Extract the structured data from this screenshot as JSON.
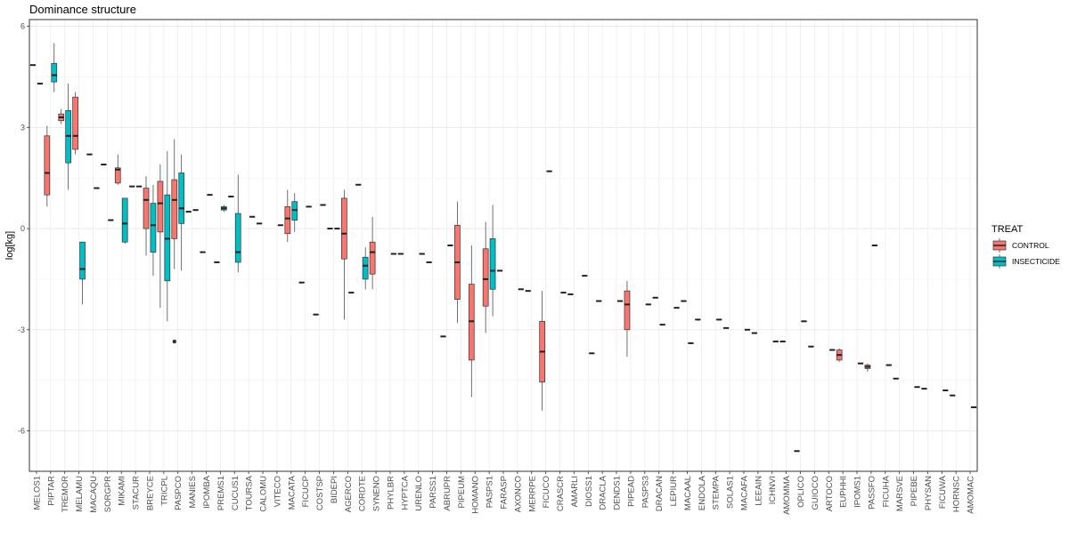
{
  "chart_data": {
    "type": "boxplot",
    "title": "Dominance structure",
    "ylabel": "log[kg]",
    "xlabel": "",
    "ylim": [
      -7.2,
      6.2
    ],
    "yticks": [
      6,
      3,
      0,
      -3,
      -6
    ],
    "ytick_labels": [
      "6",
      "3",
      "0",
      "-3",
      "-6"
    ],
    "grid": true,
    "legend": {
      "title": "TREAT",
      "placement": "right",
      "entries": [
        {
          "key": "CONTROL",
          "label": "CONTROL",
          "color": "#F8766D"
        },
        {
          "key": "INSECTICIDE",
          "label": "INSECTICIDE",
          "color": "#00BFC4"
        }
      ]
    },
    "categories": [
      "MELOS1",
      "PIPTAR",
      "TREMOR",
      "MELAMU",
      "MACAQU",
      "SORGPR",
      "MIKAMI",
      "STACUR",
      "BREYCE",
      "TRICPL",
      "PASPCO",
      "MANIES",
      "IPOMBA",
      "PREMS1",
      "CUCUS1",
      "TOURSA",
      "CALOMU",
      "VITECO",
      "MACATA",
      "FICUCP",
      "COSTSP",
      "BIDEPI",
      "AGERCO",
      "CORDTE",
      "SYNENO",
      "PHYLBR",
      "HYPTCA",
      "URENLO",
      "PARSS1",
      "ABRUPR",
      "PIPEUM",
      "HOMANO",
      "PASPS1",
      "FARASP",
      "AXONCO",
      "MERRPE",
      "FICUCO",
      "CRASCR",
      "AMARLI",
      "DIOSS1",
      "DRACLA",
      "DENDS1",
      "PIPEAD",
      "PASPS3",
      "DRACAN",
      "LEPIUR",
      "MACAAL",
      "ENDOLA",
      "STEMPA",
      "SOLAS1",
      "MACAFA",
      "LEEAIN",
      "ICHNVI",
      "AMOMMA",
      "OPLICO",
      "GUIOCO",
      "ARTOCO",
      "EUPHHI",
      "IPOMS1",
      "PASSFO",
      "FICUHA",
      "MARSVE",
      "PIPEBE",
      "PHYSAN",
      "FICUWA",
      "HORNSC",
      "AMOMAC"
    ],
    "series": [
      {
        "name": "CONTROL",
        "boxes": [
          {
            "x": "MELOS1",
            "min": 4.85,
            "q1": 4.85,
            "median": 4.85,
            "q3": 4.85,
            "max": 4.85
          },
          {
            "x": "PIPTAR",
            "min": 0.65,
            "q1": 1.0,
            "median": 1.65,
            "q3": 2.75,
            "max": 3.05
          },
          {
            "x": "TREMOR",
            "min": 3.1,
            "q1": 3.2,
            "median": 3.3,
            "q3": 3.4,
            "max": 3.55
          },
          {
            "x": "MELAMU",
            "min": 2.2,
            "q1": 2.35,
            "median": 2.75,
            "q3": 3.9,
            "max": 4.05
          },
          {
            "x": "MACAQU",
            "min": 2.2,
            "q1": 2.2,
            "median": 2.2,
            "q3": 2.2,
            "max": 2.2
          },
          {
            "x": "SORGPR",
            "min": 1.9,
            "q1": 1.9,
            "median": 1.9,
            "q3": 1.9,
            "max": 1.9
          },
          {
            "x": "MIKAMI",
            "min": 1.3,
            "q1": 1.35,
            "median": 1.75,
            "q3": 1.8,
            "max": 2.2
          },
          {
            "x": "STACUR",
            "min": 1.25,
            "q1": 1.25,
            "median": 1.25,
            "q3": 1.25,
            "max": 1.25
          },
          {
            "x": "BREYCE",
            "min": -0.8,
            "q1": 0.0,
            "median": 0.85,
            "q3": 1.2,
            "max": 1.55
          },
          {
            "x": "TRICPL",
            "min": -2.35,
            "q1": -0.1,
            "median": 0.75,
            "q3": 1.4,
            "max": 1.9
          },
          {
            "x": "PASPCO",
            "min": -1.2,
            "q1": -0.3,
            "median": 0.85,
            "q3": 1.45,
            "max": 2.65,
            "outliers": [
              -3.35
            ]
          },
          {
            "x": "MANIES",
            "min": 0.5,
            "q1": 0.5,
            "median": 0.5,
            "q3": 0.5,
            "max": 0.5
          },
          {
            "x": "IPOMBA",
            "min": -0.7,
            "q1": -0.7,
            "median": -0.7,
            "q3": -0.7,
            "max": -0.7
          },
          {
            "x": "PREMS1",
            "min": -1.0,
            "q1": -1.0,
            "median": -1.0,
            "q3": -1.0,
            "max": -1.0
          },
          {
            "x": "CUCUS1",
            "min": 0.95,
            "q1": 0.95,
            "median": 0.95,
            "q3": 0.95,
            "max": 0.95
          },
          {
            "x": "CALOMU",
            "min": 0.15,
            "q1": 0.15,
            "median": 0.15,
            "q3": 0.15,
            "max": 0.15
          },
          {
            "x": "MACATA",
            "min": -0.4,
            "q1": -0.15,
            "median": 0.3,
            "q3": 0.65,
            "max": 1.15
          },
          {
            "x": "FICUCP",
            "min": -1.6,
            "q1": -1.6,
            "median": -1.6,
            "q3": -1.6,
            "max": -1.6
          },
          {
            "x": "COSTSP",
            "min": -2.55,
            "q1": -2.55,
            "median": -2.55,
            "q3": -2.55,
            "max": -2.55
          },
          {
            "x": "BIDEPI",
            "min": 0.0,
            "q1": 0.0,
            "median": 0.0,
            "q3": 0.0,
            "max": 0.0
          },
          {
            "x": "AGERCO",
            "min": -2.7,
            "q1": -0.9,
            "median": -0.15,
            "q3": 0.9,
            "max": 1.15
          },
          {
            "x": "CORDTE",
            "min": 1.3,
            "q1": 1.3,
            "median": 1.3,
            "q3": 1.3,
            "max": 1.3
          },
          {
            "x": "SYNENO",
            "min": -1.8,
            "q1": -1.35,
            "median": -0.7,
            "q3": -0.4,
            "max": 0.35
          },
          {
            "x": "HYPTCA",
            "min": -0.75,
            "q1": -0.75,
            "median": -0.75,
            "q3": -0.75,
            "max": -0.75
          },
          {
            "x": "PARSS1",
            "min": -1.0,
            "q1": -1.0,
            "median": -1.0,
            "q3": -1.0,
            "max": -1.0
          },
          {
            "x": "ABRUPR",
            "min": -3.2,
            "q1": -3.2,
            "median": -3.2,
            "q3": -3.2,
            "max": -3.2
          },
          {
            "x": "PIPEUM",
            "min": -2.8,
            "q1": -2.1,
            "median": -1.0,
            "q3": 0.1,
            "max": 0.8
          },
          {
            "x": "HOMANO",
            "min": -5.0,
            "q1": -3.9,
            "median": -2.75,
            "q3": -1.65,
            "max": -0.5
          },
          {
            "x": "PASPS1",
            "min": -3.1,
            "q1": -2.3,
            "median": -1.5,
            "q3": -0.6,
            "max": 0.2
          },
          {
            "x": "FARASP",
            "min": -1.25,
            "q1": -1.25,
            "median": -1.25,
            "q3": -1.25,
            "max": -1.25
          },
          {
            "x": "MERRPE",
            "min": -1.85,
            "q1": -1.85,
            "median": -1.85,
            "q3": -1.85,
            "max": -1.85
          },
          {
            "x": "FICUCO",
            "min": -5.4,
            "q1": -4.55,
            "median": -3.65,
            "q3": -2.75,
            "max": -1.85
          },
          {
            "x": "AMARLI",
            "min": -1.95,
            "q1": -1.95,
            "median": -1.95,
            "q3": -1.95,
            "max": -1.95
          },
          {
            "x": "DIOSS1",
            "min": -1.4,
            "q1": -1.4,
            "median": -1.4,
            "q3": -1.4,
            "max": -1.4
          },
          {
            "x": "DRACLA",
            "min": -2.15,
            "q1": -2.15,
            "median": -2.15,
            "q3": -2.15,
            "max": -2.15
          },
          {
            "x": "PIPEAD",
            "min": -3.8,
            "q1": -3.0,
            "median": -2.25,
            "q3": -1.85,
            "max": -1.55
          },
          {
            "x": "DRACAN",
            "min": -2.05,
            "q1": -2.05,
            "median": -2.05,
            "q3": -2.05,
            "max": -2.05
          },
          {
            "x": "MACAAL",
            "min": -2.15,
            "q1": -2.15,
            "median": -2.15,
            "q3": -2.15,
            "max": -2.15
          },
          {
            "x": "ENDOLA",
            "min": -2.7,
            "q1": -2.7,
            "median": -2.7,
            "q3": -2.7,
            "max": -2.7
          },
          {
            "x": "SOLAS1",
            "min": -2.95,
            "q1": -2.95,
            "median": -2.95,
            "q3": -2.95,
            "max": -2.95
          },
          {
            "x": "LEEAIN",
            "min": -3.1,
            "q1": -3.1,
            "median": -3.1,
            "q3": -3.1,
            "max": -3.1
          },
          {
            "x": "AMOMMA",
            "min": -3.35,
            "q1": -3.35,
            "median": -3.35,
            "q3": -3.35,
            "max": -3.35
          },
          {
            "x": "OPLICO",
            "min": -6.6,
            "q1": -6.6,
            "median": -6.6,
            "q3": -6.6,
            "max": -6.6
          },
          {
            "x": "GUIOCO",
            "min": -3.5,
            "q1": -3.5,
            "median": -3.5,
            "q3": -3.5,
            "max": -3.5
          },
          {
            "x": "EUPHHI",
            "min": -3.95,
            "q1": -3.9,
            "median": -3.75,
            "q3": -3.6,
            "max": -3.55
          },
          {
            "x": "PASSFO",
            "min": -4.25,
            "q1": -4.15,
            "median": -4.1,
            "q3": -4.05,
            "max": -4.0
          },
          {
            "x": "MARSVE",
            "min": -4.45,
            "q1": -4.45,
            "median": -4.45,
            "q3": -4.45,
            "max": -4.45
          },
          {
            "x": "PHYSAN",
            "min": -4.75,
            "q1": -4.75,
            "median": -4.75,
            "q3": -4.75,
            "max": -4.75
          },
          {
            "x": "HORNSC",
            "min": -4.95,
            "q1": -4.95,
            "median": -4.95,
            "q3": -4.95,
            "max": -4.95
          }
        ]
      },
      {
        "name": "INSECTICIDE",
        "boxes": [
          {
            "x": "MELOS1",
            "min": 4.3,
            "q1": 4.3,
            "median": 4.3,
            "q3": 4.3,
            "max": 4.3
          },
          {
            "x": "PIPTAR",
            "min": 4.05,
            "q1": 4.35,
            "median": 4.55,
            "q3": 4.9,
            "max": 5.5
          },
          {
            "x": "TREMOR",
            "min": 1.15,
            "q1": 1.95,
            "median": 2.75,
            "q3": 3.5,
            "max": 4.3
          },
          {
            "x": "MELAMU",
            "min": -2.25,
            "q1": -1.5,
            "median": -1.2,
            "q3": -0.4,
            "max": -0.4
          },
          {
            "x": "MACAQU",
            "min": 1.2,
            "q1": 1.2,
            "median": 1.2,
            "q3": 1.2,
            "max": 1.2
          },
          {
            "x": "SORGPR",
            "min": 0.25,
            "q1": 0.25,
            "median": 0.25,
            "q3": 0.25,
            "max": 0.25
          },
          {
            "x": "MIKAMI",
            "min": -0.45,
            "q1": -0.4,
            "median": 0.15,
            "q3": 0.9,
            "max": 0.9
          },
          {
            "x": "STACUR",
            "min": 1.25,
            "q1": 1.25,
            "median": 1.25,
            "q3": 1.25,
            "max": 1.25
          },
          {
            "x": "BREYCE",
            "min": -1.4,
            "q1": -0.7,
            "median": 0.1,
            "q3": 0.75,
            "max": 1.3
          },
          {
            "x": "TRICPL",
            "min": -2.75,
            "q1": -1.55,
            "median": -0.3,
            "q3": 1.0,
            "max": 2.3
          },
          {
            "x": "PASPCO",
            "min": -1.25,
            "q1": 0.15,
            "median": 0.6,
            "q3": 1.65,
            "max": 2.2
          },
          {
            "x": "MANIES",
            "min": 0.55,
            "q1": 0.55,
            "median": 0.55,
            "q3": 0.55,
            "max": 0.55
          },
          {
            "x": "IPOMBA",
            "min": 1.0,
            "q1": 1.0,
            "median": 1.0,
            "q3": 1.0,
            "max": 1.0
          },
          {
            "x": "PREMS1",
            "min": 0.5,
            "q1": 0.55,
            "median": 0.6,
            "q3": 0.65,
            "max": 0.7
          },
          {
            "x": "CUCUS1",
            "min": -1.3,
            "q1": -1.0,
            "median": -0.7,
            "q3": 0.45,
            "max": 1.6
          },
          {
            "x": "TOURSA",
            "min": 0.35,
            "q1": 0.35,
            "median": 0.35,
            "q3": 0.35,
            "max": 0.35
          },
          {
            "x": "VITECO",
            "min": 0.1,
            "q1": 0.1,
            "median": 0.1,
            "q3": 0.1,
            "max": 0.1
          },
          {
            "x": "MACATA",
            "min": -0.1,
            "q1": 0.25,
            "median": 0.55,
            "q3": 0.8,
            "max": 1.05
          },
          {
            "x": "FICUCP",
            "min": 0.65,
            "q1": 0.65,
            "median": 0.65,
            "q3": 0.65,
            "max": 0.65
          },
          {
            "x": "COSTSP",
            "min": 0.7,
            "q1": 0.7,
            "median": 0.7,
            "q3": 0.7,
            "max": 0.7
          },
          {
            "x": "BIDEPI",
            "min": 0.0,
            "q1": 0.0,
            "median": 0.0,
            "q3": 0.0,
            "max": 0.0
          },
          {
            "x": "AGERCO",
            "min": -1.9,
            "q1": -1.9,
            "median": -1.9,
            "q3": -1.9,
            "max": -1.9
          },
          {
            "x": "CORDTE",
            "min": -1.8,
            "q1": -1.5,
            "median": -1.1,
            "q3": -0.85,
            "max": -0.55
          },
          {
            "x": "PHYLBR",
            "min": -0.75,
            "q1": -0.75,
            "median": -0.75,
            "q3": -0.75,
            "max": -0.75
          },
          {
            "x": "URENLO",
            "min": -0.75,
            "q1": -0.75,
            "median": -0.75,
            "q3": -0.75,
            "max": -0.75
          },
          {
            "x": "ABRUPR",
            "min": -0.5,
            "q1": -0.5,
            "median": -0.5,
            "q3": -0.5,
            "max": -0.5
          },
          {
            "x": "PASPS1",
            "min": -2.6,
            "q1": -1.8,
            "median": -1.25,
            "q3": -0.3,
            "max": 0.7
          },
          {
            "x": "AXONCO",
            "min": -1.8,
            "q1": -1.8,
            "median": -1.8,
            "q3": -1.8,
            "max": -1.8
          },
          {
            "x": "FICUCO",
            "min": 1.7,
            "q1": 1.7,
            "median": 1.7,
            "q3": 1.7,
            "max": 1.7
          },
          {
            "x": "CRASCR",
            "min": -1.9,
            "q1": -1.9,
            "median": -1.9,
            "q3": -1.9,
            "max": -1.9
          },
          {
            "x": "DIOSS1",
            "min": -3.7,
            "q1": -3.7,
            "median": -3.7,
            "q3": -3.7,
            "max": -3.7
          },
          {
            "x": "DENDS1",
            "min": -2.15,
            "q1": -2.15,
            "median": -2.15,
            "q3": -2.15,
            "max": -2.15
          },
          {
            "x": "PASPS3",
            "min": -2.25,
            "q1": -2.25,
            "median": -2.25,
            "q3": -2.25,
            "max": -2.25
          },
          {
            "x": "DRACAN",
            "min": -2.85,
            "q1": -2.85,
            "median": -2.85,
            "q3": -2.85,
            "max": -2.85
          },
          {
            "x": "LEPIUR",
            "min": -2.35,
            "q1": -2.35,
            "median": -2.35,
            "q3": -2.35,
            "max": -2.35
          },
          {
            "x": "MACAAL",
            "min": -3.4,
            "q1": -3.4,
            "median": -3.4,
            "q3": -3.4,
            "max": -3.4
          },
          {
            "x": "STEMPA",
            "min": -2.7,
            "q1": -2.7,
            "median": -2.7,
            "q3": -2.7,
            "max": -2.7
          },
          {
            "x": "MACAFA",
            "min": -3.0,
            "q1": -3.0,
            "median": -3.0,
            "q3": -3.0,
            "max": -3.0
          },
          {
            "x": "ICHNVI",
            "min": -3.35,
            "q1": -3.35,
            "median": -3.35,
            "q3": -3.35,
            "max": -3.35
          },
          {
            "x": "OPLICO",
            "min": -2.75,
            "q1": -2.75,
            "median": -2.75,
            "q3": -2.75,
            "max": -2.75
          },
          {
            "x": "ARTOCO",
            "min": -3.6,
            "q1": -3.6,
            "median": -3.6,
            "q3": -3.6,
            "max": -3.6
          },
          {
            "x": "IPOMS1",
            "min": -4.0,
            "q1": -4.0,
            "median": -4.0,
            "q3": -4.0,
            "max": -4.0
          },
          {
            "x": "PASSFO",
            "min": -0.5,
            "q1": -0.5,
            "median": -0.5,
            "q3": -0.5,
            "max": -0.5
          },
          {
            "x": "FICUHA",
            "min": -4.05,
            "q1": -4.05,
            "median": -4.05,
            "q3": -4.05,
            "max": -4.05
          },
          {
            "x": "PIPEBE",
            "min": -4.7,
            "q1": -4.7,
            "median": -4.7,
            "q3": -4.7,
            "max": -4.7
          },
          {
            "x": "FICUWA",
            "min": -4.8,
            "q1": -4.8,
            "median": -4.8,
            "q3": -4.8,
            "max": -4.8
          },
          {
            "x": "AMOMAC",
            "min": -5.3,
            "q1": -5.3,
            "median": -5.3,
            "q3": -5.3,
            "max": -5.3
          }
        ]
      }
    ]
  }
}
